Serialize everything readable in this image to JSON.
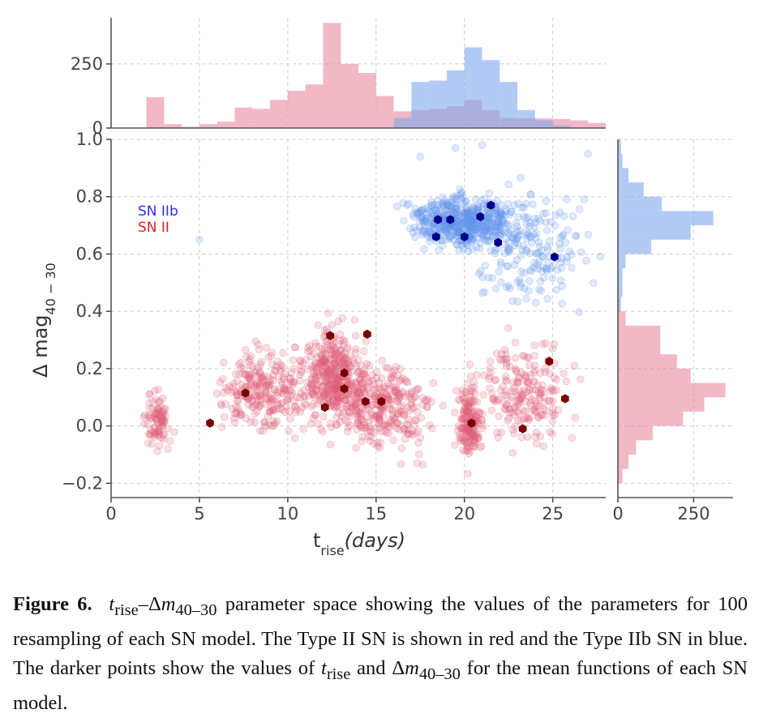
{
  "chart_data": {
    "type": "scatter",
    "xlabel": {
      "base": "t",
      "sub": "rise",
      "rest": "(days)"
    },
    "ylabel": {
      "prefix": "Δ mag",
      "sub": "40 − 30"
    },
    "xlim": [
      0,
      28
    ],
    "ylim": [
      -0.25,
      1.0
    ],
    "xticks": [
      {
        "v": 0,
        "label": "0"
      },
      {
        "v": 5,
        "label": "5"
      },
      {
        "v": 10,
        "label": "10"
      },
      {
        "v": 15,
        "label": "15"
      },
      {
        "v": 20,
        "label": "20"
      },
      {
        "v": 25,
        "label": "25"
      }
    ],
    "yticks": [
      {
        "v": -0.2,
        "label": "−0.2"
      },
      {
        "v": 0.0,
        "label": "0.0"
      },
      {
        "v": 0.2,
        "label": "0.2"
      },
      {
        "v": 0.4,
        "label": "0.4"
      },
      {
        "v": 0.6,
        "label": "0.6"
      },
      {
        "v": 0.8,
        "label": "0.8"
      },
      {
        "v": 1.0,
        "label": "1.0"
      }
    ],
    "grid": true,
    "legend_placement": "upper-left",
    "colors": {
      "IIb": "#6495ED",
      "II": "#E0607A",
      "IIb_mean": "#00008B",
      "II_mean": "#7A0000"
    },
    "series": [
      {
        "name": "SN IIb",
        "legend_color": "#2f2fe6",
        "mean_points": [
          [
            18.5,
            0.72
          ],
          [
            19.2,
            0.72
          ],
          [
            18.4,
            0.66
          ],
          [
            20.0,
            0.66
          ],
          [
            20.9,
            0.73
          ],
          [
            21.5,
            0.77
          ],
          [
            21.9,
            0.64
          ],
          [
            25.1,
            0.59
          ]
        ],
        "cloud_clusters": [
          {
            "cx": 20.0,
            "cy": 0.71,
            "sx": 1.9,
            "sy": 0.06,
            "n": 520
          },
          {
            "cx": 23.8,
            "cy": 0.62,
            "sx": 2.2,
            "sy": 0.13,
            "n": 180
          }
        ],
        "cloud_outliers": [
          [
            5.0,
            0.65
          ],
          [
            17.5,
            0.94
          ],
          [
            27.0,
            0.95
          ],
          [
            19.5,
            0.97
          ],
          [
            21.0,
            0.98
          ]
        ]
      },
      {
        "name": "SN II",
        "legend_color": "#e02020",
        "mean_points": [
          [
            5.6,
            0.01
          ],
          [
            7.6,
            0.115
          ],
          [
            12.1,
            0.065
          ],
          [
            12.4,
            0.315
          ],
          [
            13.2,
            0.185
          ],
          [
            13.2,
            0.13
          ],
          [
            14.4,
            0.085
          ],
          [
            14.5,
            0.32
          ],
          [
            15.3,
            0.085
          ],
          [
            20.4,
            0.01
          ],
          [
            23.3,
            -0.01
          ],
          [
            24.8,
            0.225
          ],
          [
            25.7,
            0.095
          ]
        ],
        "cloud_clusters": [
          {
            "cx": 2.6,
            "cy": 0.02,
            "sx": 0.5,
            "sy": 0.06,
            "n": 90
          },
          {
            "cx": 8.5,
            "cy": 0.12,
            "sx": 1.7,
            "sy": 0.09,
            "n": 250
          },
          {
            "cx": 12.6,
            "cy": 0.17,
            "sx": 1.2,
            "sy": 0.11,
            "n": 420
          },
          {
            "cx": 15.0,
            "cy": 0.08,
            "sx": 1.4,
            "sy": 0.1,
            "n": 200
          },
          {
            "cx": 20.3,
            "cy": 0.01,
            "sx": 0.45,
            "sy": 0.09,
            "n": 180
          },
          {
            "cx": 23.5,
            "cy": 0.12,
            "sx": 1.7,
            "sy": 0.11,
            "n": 200
          },
          {
            "cx": 17.0,
            "cy": 0.05,
            "sx": 1.2,
            "sy": 0.1,
            "n": 90
          }
        ]
      }
    ],
    "top_histogram": {
      "ylim": [
        0,
        430
      ],
      "yticks": [
        {
          "v": 0,
          "label": "0"
        },
        {
          "v": 250,
          "label": "250"
        }
      ],
      "bin_width": 1.0,
      "series": [
        {
          "name": "SN II",
          "color": "#E8889E",
          "bins": [
            [
              2,
              3,
              120
            ],
            [
              3,
              4,
              15
            ],
            [
              4,
              5,
              5
            ],
            [
              5,
              6,
              15
            ],
            [
              6,
              7,
              25
            ],
            [
              7,
              8,
              80
            ],
            [
              8,
              9,
              75
            ],
            [
              9,
              10,
              110
            ],
            [
              10,
              11,
              145
            ],
            [
              11,
              12,
              170
            ],
            [
              12,
              13,
              410
            ],
            [
              13,
              14,
              250
            ],
            [
              14,
              15,
              215
            ],
            [
              15,
              16,
              125
            ],
            [
              16,
              17,
              65
            ],
            [
              17,
              18,
              70
            ],
            [
              18,
              19,
              75
            ],
            [
              19,
              20,
              85
            ],
            [
              20,
              21,
              110
            ],
            [
              21,
              22,
              70
            ],
            [
              22,
              23,
              40
            ],
            [
              23,
              24,
              38
            ],
            [
              24,
              25,
              38
            ],
            [
              25,
              26,
              35
            ],
            [
              26,
              27,
              30
            ],
            [
              27,
              28,
              20
            ]
          ]
        },
        {
          "name": "SN IIb",
          "color": "#7FA8EE",
          "bins": [
            [
              16,
              17,
              40
            ],
            [
              17,
              18,
              180
            ],
            [
              18,
              19,
              185
            ],
            [
              19,
              20,
              225
            ],
            [
              20,
              21,
              315
            ],
            [
              21,
              22,
              265
            ],
            [
              22,
              23,
              180
            ],
            [
              23,
              24,
              70
            ],
            [
              24,
              25,
              30
            ],
            [
              25,
              26,
              10
            ]
          ]
        }
      ]
    },
    "right_histogram": {
      "xlim": [
        0,
        380
      ],
      "xticks": [
        {
          "v": 0,
          "label": "0"
        },
        {
          "v": 250,
          "label": "250"
        }
      ],
      "bin_height": 0.05,
      "series": [
        {
          "name": "SN II",
          "color": "#E8889E",
          "bins": [
            [
              -0.2,
              -0.15,
              15
            ],
            [
              -0.15,
              -0.1,
              35
            ],
            [
              -0.1,
              -0.05,
              60
            ],
            [
              -0.05,
              0.0,
              115
            ],
            [
              0.0,
              0.05,
              215
            ],
            [
              0.05,
              0.1,
              285
            ],
            [
              0.1,
              0.15,
              355
            ],
            [
              0.15,
              0.2,
              240
            ],
            [
              0.2,
              0.25,
              195
            ],
            [
              0.25,
              0.3,
              140
            ],
            [
              0.3,
              0.35,
              140
            ],
            [
              0.35,
              0.4,
              25
            ],
            [
              0.4,
              0.45,
              5
            ]
          ]
        },
        {
          "name": "SN IIb",
          "color": "#7FA8EE",
          "bins": [
            [
              0.4,
              0.45,
              10
            ],
            [
              0.45,
              0.5,
              15
            ],
            [
              0.5,
              0.55,
              15
            ],
            [
              0.55,
              0.6,
              25
            ],
            [
              0.6,
              0.65,
              110
            ],
            [
              0.65,
              0.7,
              240
            ],
            [
              0.7,
              0.75,
              315
            ],
            [
              0.75,
              0.8,
              145
            ],
            [
              0.8,
              0.85,
              85
            ],
            [
              0.85,
              0.9,
              35
            ],
            [
              0.9,
              0.95,
              15
            ],
            [
              0.95,
              1.0,
              10
            ]
          ]
        }
      ]
    }
  },
  "caption": {
    "label": "Figure 6.",
    "part1": "t",
    "part1_sub": "rise",
    "part2": "–Δ",
    "part3": "m",
    "part3_sub": "40–30",
    "part4": " parameter space showing the values of the parameters for 100 resampling of each SN model. The Type II SN is shown in red and the Type IIb SN in blue. The darker points show the values of ",
    "part5": "t",
    "part5_sub": "rise",
    "part6": " and Δ",
    "part7": "m",
    "part7_sub": "40–30",
    "part8": " for the mean functions of each SN model."
  }
}
